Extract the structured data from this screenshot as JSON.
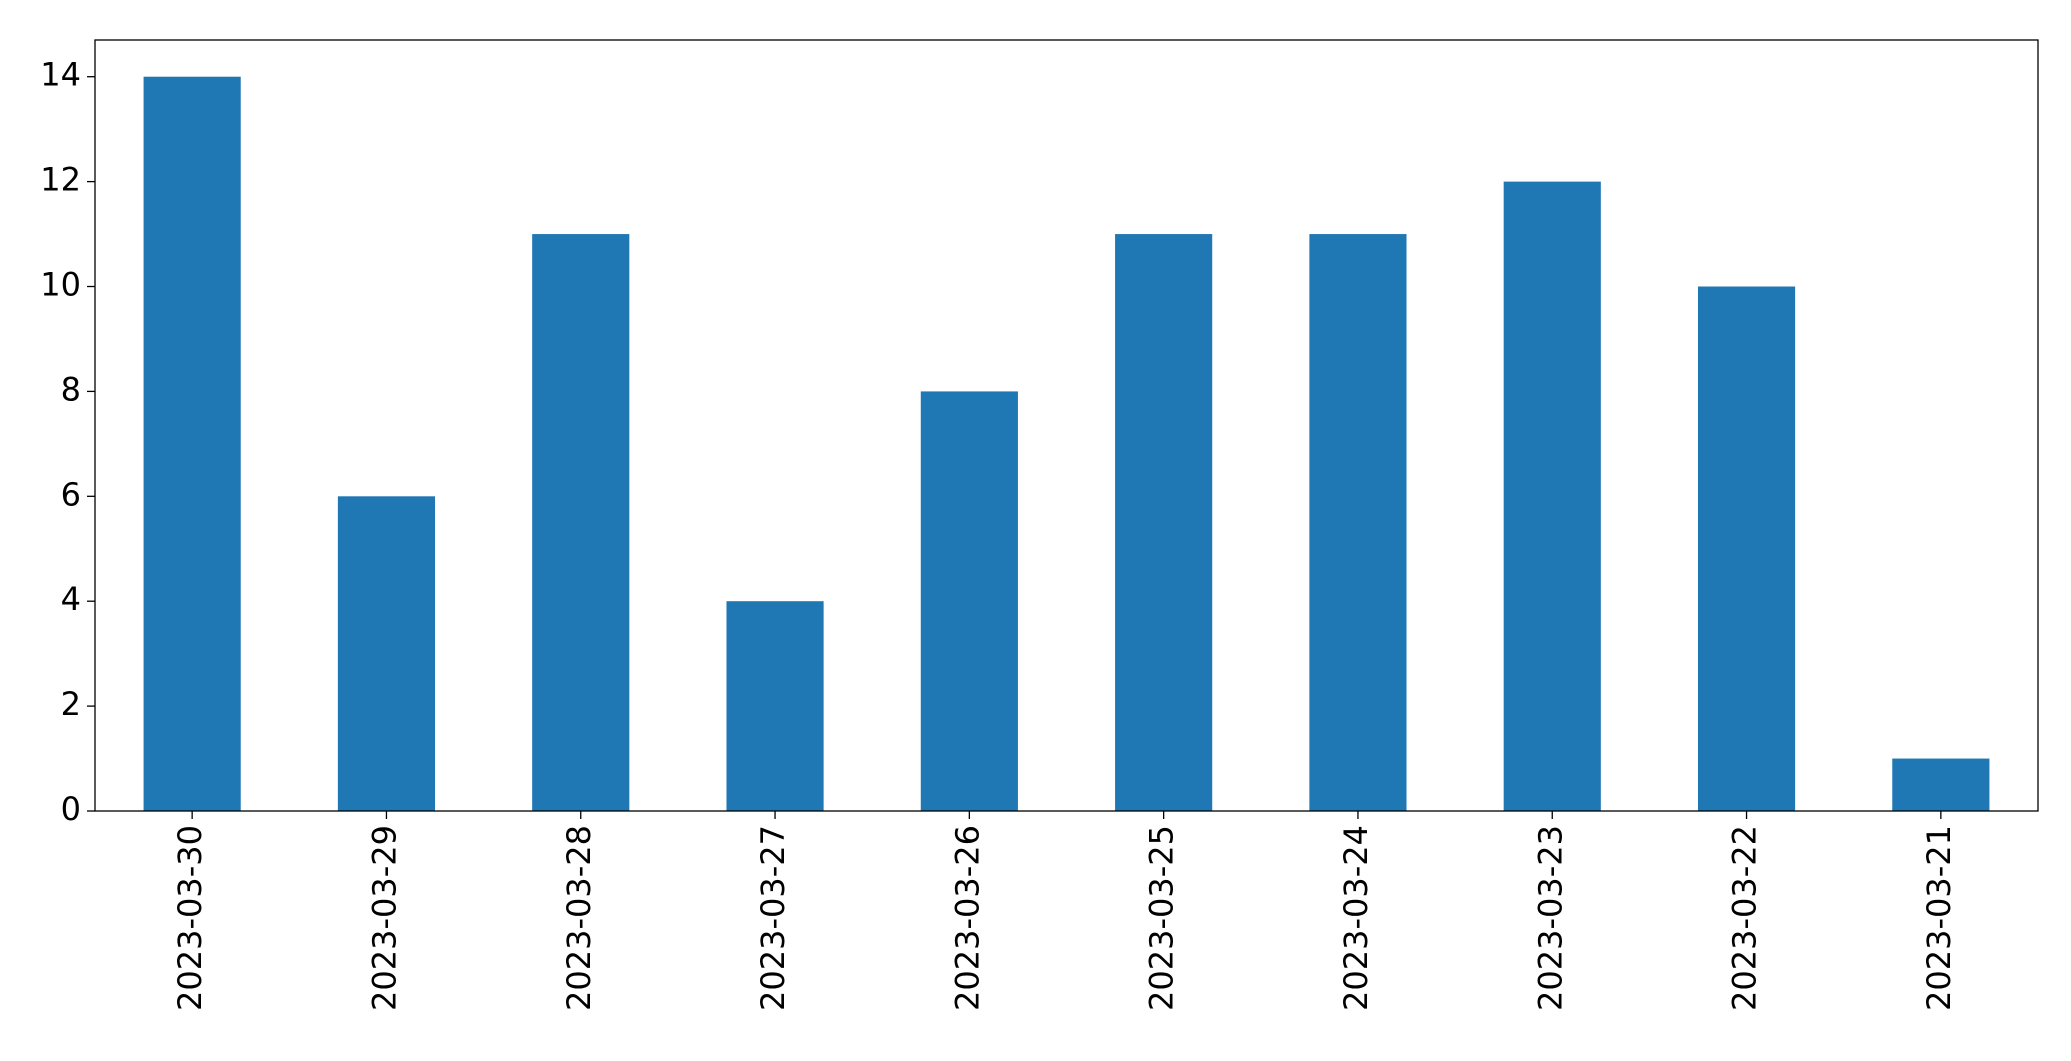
{
  "chart_data": {
    "type": "bar",
    "categories": [
      "2023-03-30",
      "2023-03-29",
      "2023-03-28",
      "2023-03-27",
      "2023-03-26",
      "2023-03-25",
      "2023-03-24",
      "2023-03-23",
      "2023-03-22",
      "2023-03-21"
    ],
    "values": [
      14,
      6,
      11,
      4,
      8,
      11,
      11,
      12,
      10,
      1
    ],
    "color": "#1f77b4",
    "ylim": [
      0,
      14.7
    ],
    "yticks": [
      0,
      2,
      4,
      6,
      8,
      10,
      12,
      14
    ],
    "grid": false
  }
}
